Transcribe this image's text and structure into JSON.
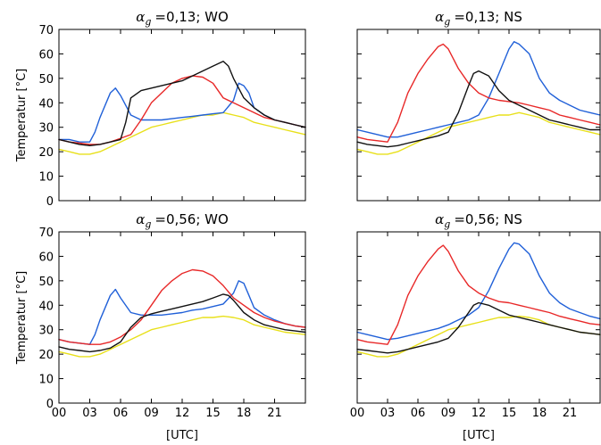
{
  "chart_data": [
    {
      "type": "line",
      "title_symbol": "αg",
      "title": "=0,13; WO",
      "ylabel": "Temperatur [°C]",
      "xlabel": "",
      "xlim": [
        0,
        24
      ],
      "ylim": [
        0,
        70
      ],
      "yticks": [
        0,
        10,
        20,
        30,
        40,
        50,
        60,
        70
      ],
      "xticks": [
        0,
        3,
        6,
        9,
        12,
        15,
        18,
        21
      ],
      "xtick_labels": [],
      "series": [
        {
          "color": "#e8e01a",
          "x": [
            0,
            1,
            2,
            3,
            4,
            5,
            6,
            7,
            8,
            9,
            10,
            11,
            12,
            13,
            14,
            15,
            16,
            17,
            18,
            19,
            20,
            21,
            22,
            23,
            24
          ],
          "y": [
            21,
            20,
            19,
            19,
            20,
            22,
            24,
            26,
            28,
            30,
            31,
            32,
            33,
            34,
            35,
            35,
            36,
            35,
            34,
            32,
            31,
            30,
            29,
            28,
            27
          ]
        },
        {
          "color": "#2060d8",
          "x": [
            0,
            1,
            2,
            3,
            3.5,
            4,
            5,
            5.5,
            6,
            7,
            8,
            9,
            10,
            11,
            12,
            13,
            14,
            15,
            16,
            17,
            17.5,
            18,
            18.5,
            19,
            20,
            21,
            22,
            23,
            24
          ],
          "y": [
            25,
            25,
            24,
            24,
            28,
            34,
            44,
            46,
            43,
            35,
            33,
            33,
            33,
            33.5,
            34,
            34.5,
            35,
            35.5,
            36,
            41,
            48,
            47,
            44,
            38,
            35,
            33,
            32,
            31,
            30
          ]
        },
        {
          "color": "#e82828",
          "x": [
            0,
            1,
            2,
            3,
            4,
            5,
            6,
            7,
            8,
            9,
            10,
            11,
            12,
            13,
            14,
            15,
            16,
            17,
            18,
            19,
            20,
            21,
            22,
            23,
            24
          ],
          "y": [
            25,
            24,
            23.5,
            23,
            23,
            24,
            25.5,
            27,
            33,
            40,
            44,
            48,
            50,
            51,
            50.5,
            48,
            42,
            40,
            38,
            36,
            34,
            33,
            32,
            31,
            30
          ]
        },
        {
          "color": "#111111",
          "x": [
            0,
            1,
            2,
            3,
            4,
            5,
            6,
            6.5,
            7,
            8,
            9,
            10,
            11,
            12,
            13,
            14,
            15,
            16,
            16.5,
            17,
            18,
            19,
            20,
            21,
            22,
            23,
            24
          ],
          "y": [
            25,
            24,
            23,
            22.5,
            23,
            24,
            25,
            32,
            42,
            45,
            46,
            47,
            48,
            49,
            51,
            53,
            55,
            57,
            55,
            50,
            42,
            38,
            35,
            33,
            32,
            31,
            30
          ]
        }
      ]
    },
    {
      "type": "line",
      "title_symbol": "αg",
      "title": "=0,13; NS",
      "ylabel": "",
      "xlabel": "",
      "xlim": [
        0,
        24
      ],
      "ylim": [
        0,
        70
      ],
      "yticks": [
        0,
        10,
        20,
        30,
        40,
        50,
        60,
        70
      ],
      "xticks": [
        0,
        3,
        6,
        9,
        12,
        15,
        18,
        21
      ],
      "xtick_labels": [],
      "series": [
        {
          "color": "#e8e01a",
          "x": [
            0,
            1,
            2,
            3,
            4,
            5,
            6,
            7,
            8,
            9,
            10,
            11,
            12,
            13,
            14,
            15,
            16,
            17,
            18,
            19,
            20,
            21,
            22,
            23,
            24
          ],
          "y": [
            21,
            20,
            19,
            19,
            20,
            22,
            24,
            26,
            28,
            30,
            31,
            32,
            33,
            34,
            35,
            35,
            36,
            35,
            34,
            32,
            31,
            30,
            29,
            28,
            27
          ]
        },
        {
          "color": "#2060d8",
          "x": [
            0,
            1,
            2,
            3,
            4,
            5,
            6,
            7,
            8,
            9,
            10,
            11,
            12,
            13,
            14,
            15,
            15.5,
            16,
            17,
            18,
            19,
            20,
            21,
            22,
            23,
            24
          ],
          "y": [
            29,
            28,
            27,
            26,
            26,
            27,
            28,
            29,
            30,
            31,
            32,
            33,
            35,
            42,
            52,
            62,
            65,
            64,
            60,
            50,
            44,
            41,
            39,
            37,
            36,
            35
          ]
        },
        {
          "color": "#e82828",
          "x": [
            0,
            1,
            2,
            3,
            4,
            5,
            6,
            7,
            8,
            8.5,
            9,
            10,
            11,
            12,
            13,
            14,
            15,
            16,
            17,
            18,
            19,
            20,
            21,
            22,
            23,
            24
          ],
          "y": [
            26,
            25,
            24.5,
            24,
            32,
            44,
            52,
            58,
            63,
            64,
            62,
            54,
            48,
            44,
            42,
            41,
            40.5,
            40,
            39,
            38,
            37,
            35,
            34,
            33,
            32,
            31
          ]
        },
        {
          "color": "#111111",
          "x": [
            0,
            1,
            2,
            3,
            4,
            5,
            6,
            7,
            8,
            9,
            10,
            11,
            11.5,
            12,
            13,
            14,
            15,
            16,
            17,
            18,
            19,
            20,
            21,
            22,
            23,
            24
          ],
          "y": [
            24,
            23,
            22.5,
            22,
            22.5,
            23.5,
            24.5,
            25.5,
            26.5,
            28,
            36,
            47,
            52,
            53,
            51,
            45,
            41,
            39,
            37,
            35,
            33,
            32,
            31,
            30,
            29,
            29
          ]
        }
      ]
    },
    {
      "type": "line",
      "title_symbol": "αg",
      "title": "=0,56; WO",
      "ylabel": "Temperatur [°C]",
      "xlabel": "[UTC]",
      "xlim": [
        0,
        24
      ],
      "ylim": [
        0,
        70
      ],
      "yticks": [
        0,
        10,
        20,
        30,
        40,
        50,
        60,
        70
      ],
      "xticks": [
        0,
        3,
        6,
        9,
        12,
        15,
        18,
        21
      ],
      "xtick_labels": [
        "00",
        "03",
        "06",
        "09",
        "12",
        "15",
        "18",
        "21"
      ],
      "series": [
        {
          "color": "#e8e01a",
          "x": [
            0,
            1,
            2,
            3,
            4,
            5,
            6,
            7,
            8,
            9,
            10,
            11,
            12,
            13,
            14,
            15,
            16,
            17,
            18,
            19,
            20,
            21,
            22,
            23,
            24
          ],
          "y": [
            21,
            20,
            19,
            19,
            20,
            22,
            24,
            26,
            28,
            30,
            31,
            32,
            33,
            34,
            35,
            35,
            35.5,
            35,
            34,
            32,
            31,
            30,
            29,
            28.5,
            28
          ]
        },
        {
          "color": "#2060d8",
          "x": [
            0,
            1,
            2,
            3,
            3.5,
            4,
            5,
            5.5,
            6,
            7,
            8,
            9,
            10,
            11,
            12,
            13,
            14,
            15,
            16,
            17,
            17.5,
            18,
            18.5,
            19,
            20,
            21,
            22,
            23,
            24
          ],
          "y": [
            26,
            25,
            24.5,
            24,
            28,
            34,
            44,
            46.5,
            43,
            37,
            36,
            36,
            36,
            36.5,
            37,
            38,
            38.5,
            39.5,
            40.5,
            45,
            50,
            49,
            44,
            39,
            36,
            34,
            32.5,
            31.5,
            31
          ]
        },
        {
          "color": "#e82828",
          "x": [
            0,
            1,
            2,
            3,
            4,
            5,
            6,
            7,
            8,
            9,
            10,
            11,
            12,
            13,
            14,
            15,
            16,
            17,
            18,
            19,
            20,
            21,
            22,
            23,
            24
          ],
          "y": [
            26,
            25,
            24.5,
            24,
            24,
            25,
            27,
            30,
            34,
            40,
            46,
            50,
            53,
            54.5,
            54,
            52,
            48,
            43,
            40,
            37,
            35,
            33.5,
            32.5,
            31.5,
            31
          ]
        },
        {
          "color": "#111111",
          "x": [
            0,
            1,
            2,
            3,
            4,
            5,
            6,
            7,
            8,
            9,
            10,
            11,
            12,
            13,
            14,
            15,
            16,
            16.5,
            17,
            18,
            19,
            20,
            21,
            22,
            23,
            24
          ],
          "y": [
            23,
            22,
            21.5,
            21,
            21.5,
            22.5,
            25,
            31,
            35,
            36.5,
            37.5,
            38.5,
            39.5,
            40.5,
            41.5,
            43,
            44.5,
            44,
            42,
            37,
            34,
            32,
            31,
            30,
            29.5,
            29
          ]
        }
      ]
    },
    {
      "type": "line",
      "title_symbol": "αg",
      "title": "=0,56; NS",
      "ylabel": "",
      "xlabel": "[UTC]",
      "xlim": [
        0,
        24
      ],
      "ylim": [
        0,
        70
      ],
      "yticks": [
        0,
        10,
        20,
        30,
        40,
        50,
        60,
        70
      ],
      "xticks": [
        0,
        3,
        6,
        9,
        12,
        15,
        18,
        21
      ],
      "xtick_labels": [
        "00",
        "03",
        "06",
        "09",
        "12",
        "15",
        "18",
        "21"
      ],
      "series": [
        {
          "color": "#e8e01a",
          "x": [
            0,
            1,
            2,
            3,
            4,
            5,
            6,
            7,
            8,
            9,
            10,
            11,
            12,
            13,
            14,
            15,
            16,
            17,
            18,
            19,
            20,
            21,
            22,
            23,
            24
          ],
          "y": [
            21,
            20,
            19,
            19,
            20,
            22,
            24,
            26,
            28,
            30,
            31,
            32,
            33,
            34,
            35,
            35,
            35.5,
            35,
            34,
            32,
            31,
            30,
            29,
            28.5,
            28
          ]
        },
        {
          "color": "#2060d8",
          "x": [
            0,
            1,
            2,
            3,
            4,
            5,
            6,
            7,
            8,
            9,
            10,
            11,
            12,
            13,
            14,
            15,
            15.5,
            16,
            17,
            18,
            19,
            20,
            21,
            22,
            23,
            24
          ],
          "y": [
            29,
            28,
            27,
            26,
            26.5,
            27.5,
            28.5,
            29.5,
            30.5,
            32,
            34,
            36,
            39,
            46,
            55,
            63,
            65.5,
            65,
            61,
            52,
            45,
            41,
            38.5,
            37,
            35.5,
            34.5
          ]
        },
        {
          "color": "#e82828",
          "x": [
            0,
            1,
            2,
            3,
            4,
            5,
            6,
            7,
            8,
            8.5,
            9,
            10,
            11,
            12,
            13,
            14,
            15,
            16,
            17,
            18,
            19,
            20,
            21,
            22,
            23,
            24
          ],
          "y": [
            26,
            25,
            24.5,
            24,
            32,
            44,
            52,
            58,
            63,
            64.5,
            62,
            54,
            48,
            45,
            43,
            41.5,
            41,
            40,
            39,
            38,
            37,
            35.5,
            34.5,
            33.5,
            32.5,
            32
          ]
        },
        {
          "color": "#111111",
          "x": [
            0,
            1,
            2,
            3,
            4,
            5,
            6,
            7,
            8,
            9,
            10,
            11,
            11.5,
            12,
            13,
            14,
            15,
            16,
            17,
            18,
            19,
            20,
            21,
            22,
            23,
            24
          ],
          "y": [
            22,
            21.5,
            21,
            20.5,
            21,
            22,
            23,
            24,
            25,
            26.5,
            31,
            37,
            40,
            41,
            40,
            38,
            36,
            35,
            34,
            33,
            32,
            31,
            30,
            29,
            28.5,
            28
          ]
        }
      ]
    }
  ]
}
